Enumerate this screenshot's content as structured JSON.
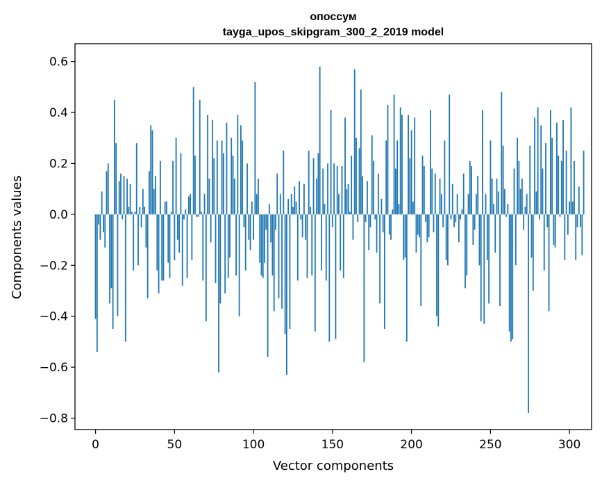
{
  "chart_data": {
    "type": "bar",
    "title": "опоссум",
    "subtitle": "tayga_upos_skipgram_300_2_2019 model",
    "xlabel": "Vector components",
    "ylabel": "Components values",
    "xlim": [
      -13,
      314
    ],
    "ylim": [
      -0.845,
      0.67
    ],
    "xticks": [
      0,
      50,
      100,
      150,
      200,
      250,
      300
    ],
    "yticks": [
      -0.8,
      -0.6,
      -0.4,
      -0.2,
      0.0,
      0.2,
      0.4,
      0.6
    ],
    "ytick_labels": [
      "−0.8",
      "−0.6",
      "−0.4",
      "−0.2",
      "0.0",
      "0.2",
      "0.4",
      "0.6"
    ],
    "grid": false,
    "bar_color": "#1f77b4",
    "bar_width": 0.8,
    "x_start": 0,
    "values": [
      -0.41,
      -0.54,
      -0.04,
      -0.1,
      0.09,
      -0.07,
      -0.13,
      0.17,
      0.2,
      -0.35,
      -0.29,
      -0.45,
      0.45,
      0.28,
      -0.4,
      0.13,
      0.16,
      -0.02,
      0.15,
      -0.5,
      0.14,
      0.03,
      0.12,
      0.01,
      -0.22,
      0.01,
      0.28,
      -0.2,
      0.03,
      -0.05,
      0.1,
      0.03,
      -0.13,
      -0.33,
      0.17,
      0.35,
      0.33,
      0.1,
      0.15,
      -0.22,
      -0.31,
      0.21,
      -0.26,
      -0.26,
      0.05,
      0.05,
      -0.19,
      -0.25,
      0.01,
      0.21,
      -0.18,
      0.3,
      -0.1,
      -0.15,
      0.24,
      -0.28,
      -0.02,
      0.02,
      -0.25,
      0.07,
      0.08,
      -0.18,
      0.5,
      0.23,
      -0.01,
      -0.01,
      0.45,
      0.01,
      -0.26,
      0.08,
      -0.42,
      0.39,
      0.14,
      -0.11,
      0.37,
      0.22,
      -0.27,
      0.29,
      -0.62,
      -0.35,
      0.29,
      0.24,
      -0.31,
      0.36,
      -0.25,
      -0.17,
      0.3,
      0.23,
      0.14,
      -0.24,
      0.39,
      -0.4,
      0.35,
      0.29,
      -0.05,
      -0.22,
      0.2,
      -0.1,
      -0.14,
      0.05,
      -0.1,
      0.52,
      0.08,
      0.14,
      -0.19,
      -0.24,
      -0.25,
      -0.19,
      -0.06,
      -0.56,
      0.04,
      -0.11,
      -0.24,
      -0.38,
      -0.06,
      0.16,
      -0.33,
      0.08,
      -0.37,
      0.25,
      -0.47,
      -0.63,
      0.06,
      -0.45,
      0.08,
      0.03,
      0.11,
      0.05,
      -0.26,
      0.13,
      -0.02,
      -0.09,
      0.12,
      -0.1,
      -0.25,
      0.25,
      0.03,
      -0.24,
      0.22,
      -0.46,
      0.14,
      0.24,
      0.58,
      -0.22,
      0.18,
      0.04,
      -0.26,
      0.2,
      -0.5,
      0.41,
      -0.05,
      0.2,
      -0.49,
      0.19,
      0.08,
      -0.22,
      0.19,
      -0.25,
      0.38,
      0.1,
      0.12,
      0.01,
      0.23,
      -0.1,
      0.57,
      0.3,
      -0.03,
      0.26,
      0.49,
      0.15,
      -0.58,
      -0.03,
      0.13,
      -0.14,
      -0.05,
      0.31,
      0.21,
      -0.02,
      -0.15,
      0.16,
      -0.35,
      0.06,
      -0.07,
      -0.45,
      0.29,
      0.43,
      -0.08,
      -0.1,
      0.02,
      0.47,
      0.18,
      0.29,
      0.04,
      0.42,
      0.39,
      -0.18,
      -0.17,
      -0.5,
      0.39,
      0.22,
      0.33,
      0.05,
      0.38,
      -0.15,
      -0.08,
      -0.09,
      -0.36,
      0.23,
      0.19,
      -0.03,
      -0.11,
      -0.09,
      0.41,
      0.18,
      -0.07,
      0.16,
      -0.4,
      -0.44,
      0.14,
      0.08,
      -0.05,
      0.29,
      -0.18,
      -0.2,
      0.47,
      -0.02,
      0.12,
      -0.05,
      -0.03,
      0.08,
      -0.11,
      -0.02,
      0.02,
      0.16,
      -0.29,
      -0.24,
      0.08,
      0.21,
      0.19,
      -0.12,
      -0.06,
      0.08,
      0.15,
      -0.2,
      -0.42,
      0.41,
      -0.43,
      0.08,
      -0.18,
      -0.35,
      0.29,
      0.14,
      0.04,
      -0.15,
      0.14,
      0.09,
      -0.36,
      0.48,
      0.27,
      0.1,
      -0.01,
      0.04,
      -0.46,
      -0.5,
      -0.49,
      0.18,
      -0.2,
      0.3,
      0.21,
      0.1,
      0.14,
      -0.06,
      0.03,
      0.08,
      -0.78,
      0.27,
      -0.17,
      -0.3,
      0.38,
      0.09,
      0.42,
      -0.02,
      0.35,
      0.18,
      -0.22,
      0.28,
      -0.05,
      -0.38,
      0.41,
      0.3,
      -0.12,
      -0.13,
      0.36,
      0.23,
      -0.01,
      0.21,
      0.37,
      -0.18,
      0.25,
      -0.08,
      0.05,
      0.42,
      0.05,
      0.21,
      -0.18,
      -0.05,
      0.11,
      -0.05,
      -0.16,
      0.25
    ]
  }
}
